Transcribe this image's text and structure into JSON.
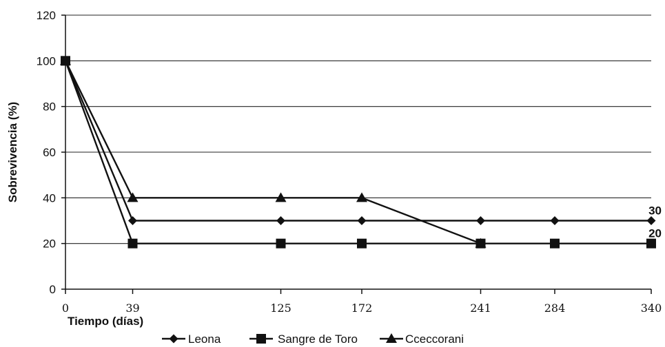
{
  "chart_data": {
    "type": "line",
    "title": "",
    "xlabel": "Tiempo (días)",
    "ylabel": "Sobrevivencia (%)",
    "x": [
      0,
      39,
      125,
      172,
      241,
      284,
      340
    ],
    "xlim": [
      0,
      340
    ],
    "ylim": [
      0,
      120
    ],
    "yticks": [
      0,
      20,
      40,
      60,
      80,
      100,
      120
    ],
    "grid": "horizontal",
    "legend_position": "bottom",
    "series": [
      {
        "name": "Leona",
        "marker": "diamond",
        "x": [
          0,
          39,
          125,
          172,
          241,
          284,
          340
        ],
        "values": [
          100,
          30,
          30,
          30,
          30,
          30,
          30
        ]
      },
      {
        "name": "Sangre de Toro",
        "marker": "square",
        "x": [
          0,
          39,
          125,
          172,
          241,
          284,
          340
        ],
        "values": [
          100,
          20,
          20,
          20,
          20,
          20,
          20
        ]
      },
      {
        "name": "Cceccorani",
        "marker": "triangle",
        "x": [
          0,
          39,
          125,
          172,
          241
        ],
        "values": [
          100,
          40,
          40,
          40,
          20
        ]
      }
    ],
    "annotations": [
      {
        "text": "30",
        "x": 340,
        "y": 30
      },
      {
        "text": "20",
        "x": 340,
        "y": 20
      }
    ]
  }
}
